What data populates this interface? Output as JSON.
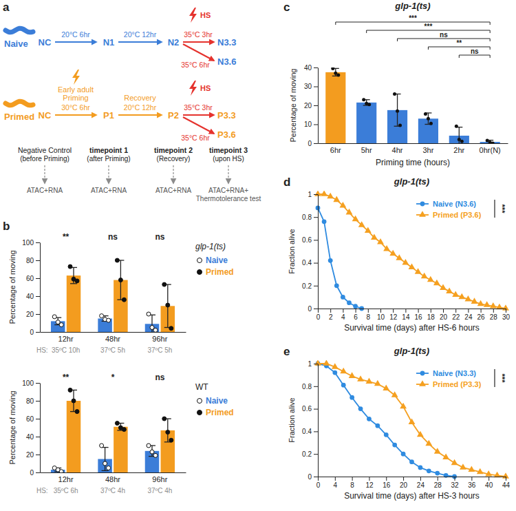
{
  "panel_labels": [
    "a",
    "b",
    "c",
    "d",
    "e"
  ],
  "diagram": {
    "rows": [
      {
        "label": "Naive",
        "nodes": [
          "NC",
          "N1",
          "N2",
          "N3.3",
          "N3.6"
        ],
        "steps": [
          {
            "temp": "20°C 6hr"
          },
          {
            "temp": "20°C 12hr"
          }
        ],
        "hs": "HS",
        "heat": [
          "35°C 3hr",
          "35°C 6hr"
        ]
      },
      {
        "label": "Primed",
        "nodes": [
          "NC",
          "P1",
          "P2",
          "P3.3",
          "P3.6"
        ],
        "steps": [
          {
            "title": [
              "Early adult",
              "Priming"
            ],
            "temp": "30°C 6hr"
          },
          {
            "title": [
              "Recovery"
            ],
            "temp": "20°C 12hr"
          }
        ],
        "hs": "HS",
        "heat": [
          "35°C 3hr",
          "35°C 6hr"
        ]
      }
    ],
    "timepoints": [
      {
        "title": "Negative Control",
        "subtitle": "(before Priming)",
        "assay": [
          "ATAC+RNA"
        ]
      },
      {
        "title": "timepoint 1",
        "subtitle": "(after Priming)",
        "assay": [
          "ATAC+RNA"
        ]
      },
      {
        "title": "timepoint 2",
        "subtitle": "(Recovery)",
        "assay": [
          "ATAC+RNA"
        ]
      },
      {
        "title": "timepoint 3",
        "subtitle": "(upon HS)",
        "assay": [
          "ATAC+RNA+",
          "Thermotolerance test"
        ]
      }
    ]
  },
  "chart_data": [
    {
      "type": "bar",
      "title": "glp-1(ts)",
      "categories": [
        "12hr",
        "48hr",
        "96hr"
      ],
      "ylabel": "Percentage of moving",
      "ylim": [
        0,
        100
      ],
      "yticks": [
        0,
        20,
        40,
        60,
        80,
        100
      ],
      "legend": "right",
      "series": [
        {
          "name": "Naive",
          "color": "#3b7dd8",
          "marker": "open-circle",
          "values": [
            12,
            15,
            9
          ],
          "errors": [
            4,
            3,
            10
          ],
          "points": [
            [
              17,
              11,
              8
            ],
            [
              18,
              14,
              13
            ],
            [
              20,
              5,
              2
            ]
          ]
        },
        {
          "name": "Primed",
          "color": "#f39c1f",
          "marker": "circle",
          "values": [
            63,
            58,
            29
          ],
          "errors": [
            9,
            22,
            24
          ],
          "points": [
            [
              73,
              59,
              57
            ],
            [
              80,
              58,
              36
            ],
            [
              53,
              30,
              4
            ]
          ]
        }
      ],
      "annotations": {
        "hs_label": "HS:",
        "conditions": [
          "35ºC 10h",
          "37ºC 5h",
          "37ºC 5h"
        ],
        "significance": [
          "**",
          "ns",
          "ns"
        ]
      }
    },
    {
      "type": "bar",
      "title": "WT",
      "categories": [
        "12hr",
        "48hr",
        "96hr"
      ],
      "ylabel": "Percentage of moving",
      "ylim": [
        0,
        100
      ],
      "yticks": [
        0,
        20,
        40,
        60,
        80,
        100
      ],
      "legend": "right",
      "series": [
        {
          "name": "Naive",
          "color": "#3b7dd8",
          "marker": "open-circle",
          "values": [
            3,
            15,
            24
          ],
          "errors": [
            2,
            13,
            6
          ],
          "points": [
            [
              5,
              3,
              1
            ],
            [
              30,
              10,
              5
            ],
            [
              30,
              23,
              19
            ]
          ]
        },
        {
          "name": "Primed",
          "color": "#f39c1f",
          "marker": "circle",
          "values": [
            80,
            51,
            47
          ],
          "errors": [
            12,
            4,
            13
          ],
          "points": [
            [
              92,
              80,
              68
            ],
            [
              55,
              50,
              48
            ],
            [
              60,
              45,
              36
            ]
          ]
        }
      ],
      "annotations": {
        "hs_label": "HS:",
        "conditions": [
          "35ºC 6h",
          "37ºC 4h",
          "37ºC 4h"
        ],
        "significance": [
          "**",
          "*",
          "ns"
        ]
      }
    },
    {
      "type": "bar",
      "title": "glp-1(ts)",
      "categories": [
        "6hr",
        "5hr",
        "4hr",
        "3hr",
        "2hr",
        "0hr(N)"
      ],
      "values": [
        37.5,
        21.5,
        17.5,
        13,
        4,
        0.7
      ],
      "errors": [
        2,
        1.5,
        8.5,
        3,
        4.5,
        0.9
      ],
      "points": [
        [
          39.5,
          37,
          36
        ],
        [
          23,
          21,
          20.5
        ],
        [
          26,
          17,
          9.5
        ],
        [
          15.5,
          13,
          10.5
        ],
        [
          9,
          2,
          1
        ],
        [
          1.5,
          0.5,
          0
        ]
      ],
      "colors": [
        "#f39c1f",
        "#3b7dd8",
        "#3b7dd8",
        "#3b7dd8",
        "#3b7dd8",
        "#3b7dd8"
      ],
      "xlabel": "Priming time (hours)",
      "ylabel": "Percentage of moving",
      "ylim": [
        0,
        40
      ],
      "yticks": [
        0,
        10,
        20,
        30,
        40
      ],
      "comparisons": [
        {
          "from": "6hr",
          "to": "0hr(N)",
          "label": "***"
        },
        {
          "from": "5hr",
          "to": "0hr(N)",
          "label": "***"
        },
        {
          "from": "4hr",
          "to": "0hr(N)",
          "label": "ns"
        },
        {
          "from": "3hr",
          "to": "0hr(N)",
          "label": "**"
        },
        {
          "from": "2hr",
          "to": "0hr(N)",
          "label": "ns"
        }
      ]
    },
    {
      "type": "line",
      "title": "glp-1(ts)",
      "xlabel": "Survival time (days) after HS-6 hours",
      "ylabel": "Fraction alive",
      "xlim": [
        0,
        30
      ],
      "xticks": [
        0,
        2,
        4,
        6,
        8,
        10,
        12,
        14,
        16,
        18,
        20,
        22,
        24,
        26,
        28,
        30
      ],
      "ylim": [
        0,
        1
      ],
      "yticks": [
        0,
        0.2,
        0.4,
        0.6,
        0.8,
        1
      ],
      "legend": "top-right",
      "series": [
        {
          "name": "Naive (N3.6)",
          "color": "#2f8be0",
          "marker": "circle",
          "x": [
            0,
            1,
            2,
            3,
            4,
            5,
            6,
            7
          ],
          "values": [
            0.88,
            0.76,
            0.42,
            0.2,
            0.1,
            0.05,
            0.02,
            0
          ]
        },
        {
          "name": "Primed (P3.6)",
          "color": "#f5a020",
          "marker": "triangle",
          "x": [
            0,
            1,
            2,
            3,
            4,
            5,
            6,
            7,
            8,
            9,
            10,
            11,
            12,
            13,
            14,
            15,
            16,
            17,
            18,
            19,
            20,
            21,
            22,
            23,
            24,
            25,
            26,
            27,
            28,
            29,
            30
          ],
          "values": [
            1,
            1,
            0.98,
            0.95,
            0.9,
            0.84,
            0.78,
            0.73,
            0.68,
            0.62,
            0.58,
            0.52,
            0.48,
            0.44,
            0.4,
            0.36,
            0.32,
            0.28,
            0.25,
            0.22,
            0.18,
            0.15,
            0.12,
            0.1,
            0.08,
            0.06,
            0.04,
            0.03,
            0.02,
            0.01,
            0
          ]
        }
      ],
      "annotations": {
        "significance": "***"
      }
    },
    {
      "type": "line",
      "title": "glp-1(ts)",
      "xlabel": "Survival time (days) after HS-3 hours",
      "ylabel": "Fraction alive",
      "xlim": [
        0,
        44
      ],
      "xticks": [
        0,
        4,
        8,
        12,
        16,
        20,
        24,
        28,
        32,
        36,
        40,
        44
      ],
      "ylim": [
        0,
        1
      ],
      "yticks": [
        0,
        0.2,
        0.4,
        0.6,
        0.8,
        1
      ],
      "legend": "top-right",
      "series": [
        {
          "name": "Naive (N3.3)",
          "color": "#2f8be0",
          "marker": "circle",
          "x": [
            0,
            2,
            4,
            6,
            8,
            10,
            12,
            14,
            16,
            18,
            20,
            22,
            24,
            26,
            28,
            30,
            32
          ],
          "values": [
            1,
            0.98,
            0.92,
            0.81,
            0.7,
            0.6,
            0.51,
            0.45,
            0.37,
            0.28,
            0.2,
            0.13,
            0.08,
            0.05,
            0.03,
            0.01,
            0
          ]
        },
        {
          "name": "Primed (P3.3)",
          "color": "#f5a020",
          "marker": "triangle",
          "x": [
            0,
            2,
            4,
            6,
            8,
            10,
            12,
            14,
            16,
            18,
            20,
            22,
            24,
            26,
            28,
            30,
            32,
            34,
            36,
            38,
            40,
            42,
            44
          ],
          "values": [
            1,
            1,
            0.97,
            0.93,
            0.89,
            0.86,
            0.84,
            0.82,
            0.78,
            0.72,
            0.62,
            0.48,
            0.37,
            0.29,
            0.22,
            0.17,
            0.12,
            0.08,
            0.06,
            0.04,
            0.02,
            0.01,
            0
          ]
        }
      ],
      "annotations": {
        "significance": "***"
      }
    }
  ]
}
